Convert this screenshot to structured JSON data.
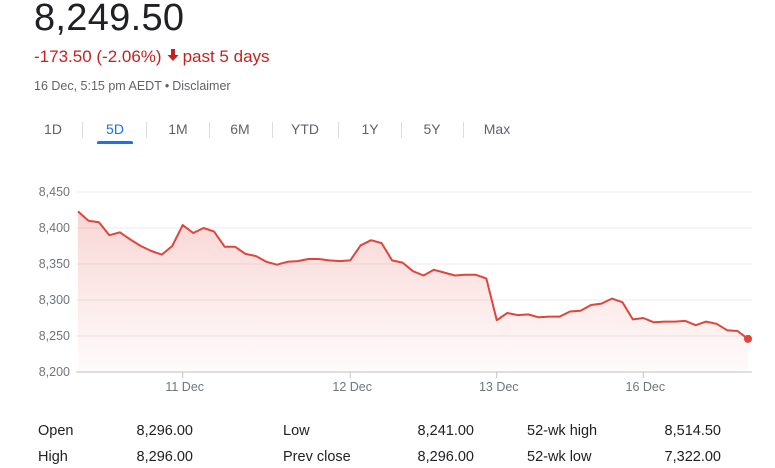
{
  "header": {
    "price": "8,249.50",
    "change": "-173.50 (-2.06%)",
    "period": "past 5 days",
    "timestamp": "16 Dec, 5:15 pm AEDT",
    "separator": "•",
    "disclaimer": "Disclaimer",
    "accent_negative": "#c5221f",
    "accent_active": "#1a73e8"
  },
  "tabs": [
    {
      "label": "1D",
      "active": false
    },
    {
      "label": "5D",
      "active": true
    },
    {
      "label": "1M",
      "active": false
    },
    {
      "label": "6M",
      "active": false
    },
    {
      "label": "YTD",
      "active": false
    },
    {
      "label": "1Y",
      "active": false
    },
    {
      "label": "5Y",
      "active": false
    },
    {
      "label": "Max",
      "active": false
    }
  ],
  "chart_data": {
    "type": "area",
    "line_color": "#e0453b",
    "ylim": [
      8200,
      8450
    ],
    "y_ticks": [
      "8,450",
      "8,400",
      "8,350",
      "8,300",
      "8,250",
      "8,200"
    ],
    "x_ticks": [
      "11 Dec",
      "12 Dec",
      "13 Dec",
      "16 Dec"
    ],
    "grid": true,
    "series": [
      {
        "values": [
          8423,
          8410,
          8408,
          8390,
          8394,
          8384,
          8375,
          8368,
          8363,
          8375,
          8404,
          8393,
          8400,
          8395,
          8374,
          8374,
          8364,
          8361,
          8353,
          8349,
          8353,
          8354,
          8357,
          8357,
          8355,
          8354,
          8355,
          8376,
          8383,
          8379,
          8355,
          8352,
          8340,
          8334,
          8342,
          8338,
          8334,
          8335,
          8335,
          8330,
          8272,
          8282,
          8279,
          8280,
          8276,
          8277,
          8277,
          8284,
          8285,
          8293,
          8295,
          8302,
          8297,
          8273,
          8275,
          8269,
          8270,
          8270,
          8271,
          8265,
          8270,
          8267,
          8258,
          8257,
          8246
        ]
      }
    ]
  },
  "stats": [
    [
      {
        "label": "Open",
        "value": "8,296.00"
      },
      {
        "label": "High",
        "value": "8,296.00"
      }
    ],
    [
      {
        "label": "Low",
        "value": "8,241.00"
      },
      {
        "label": "Prev close",
        "value": "8,296.00"
      }
    ],
    [
      {
        "label": "52-wk high",
        "value": "8,514.50"
      },
      {
        "label": "52-wk low",
        "value": "7,322.00"
      }
    ]
  ]
}
